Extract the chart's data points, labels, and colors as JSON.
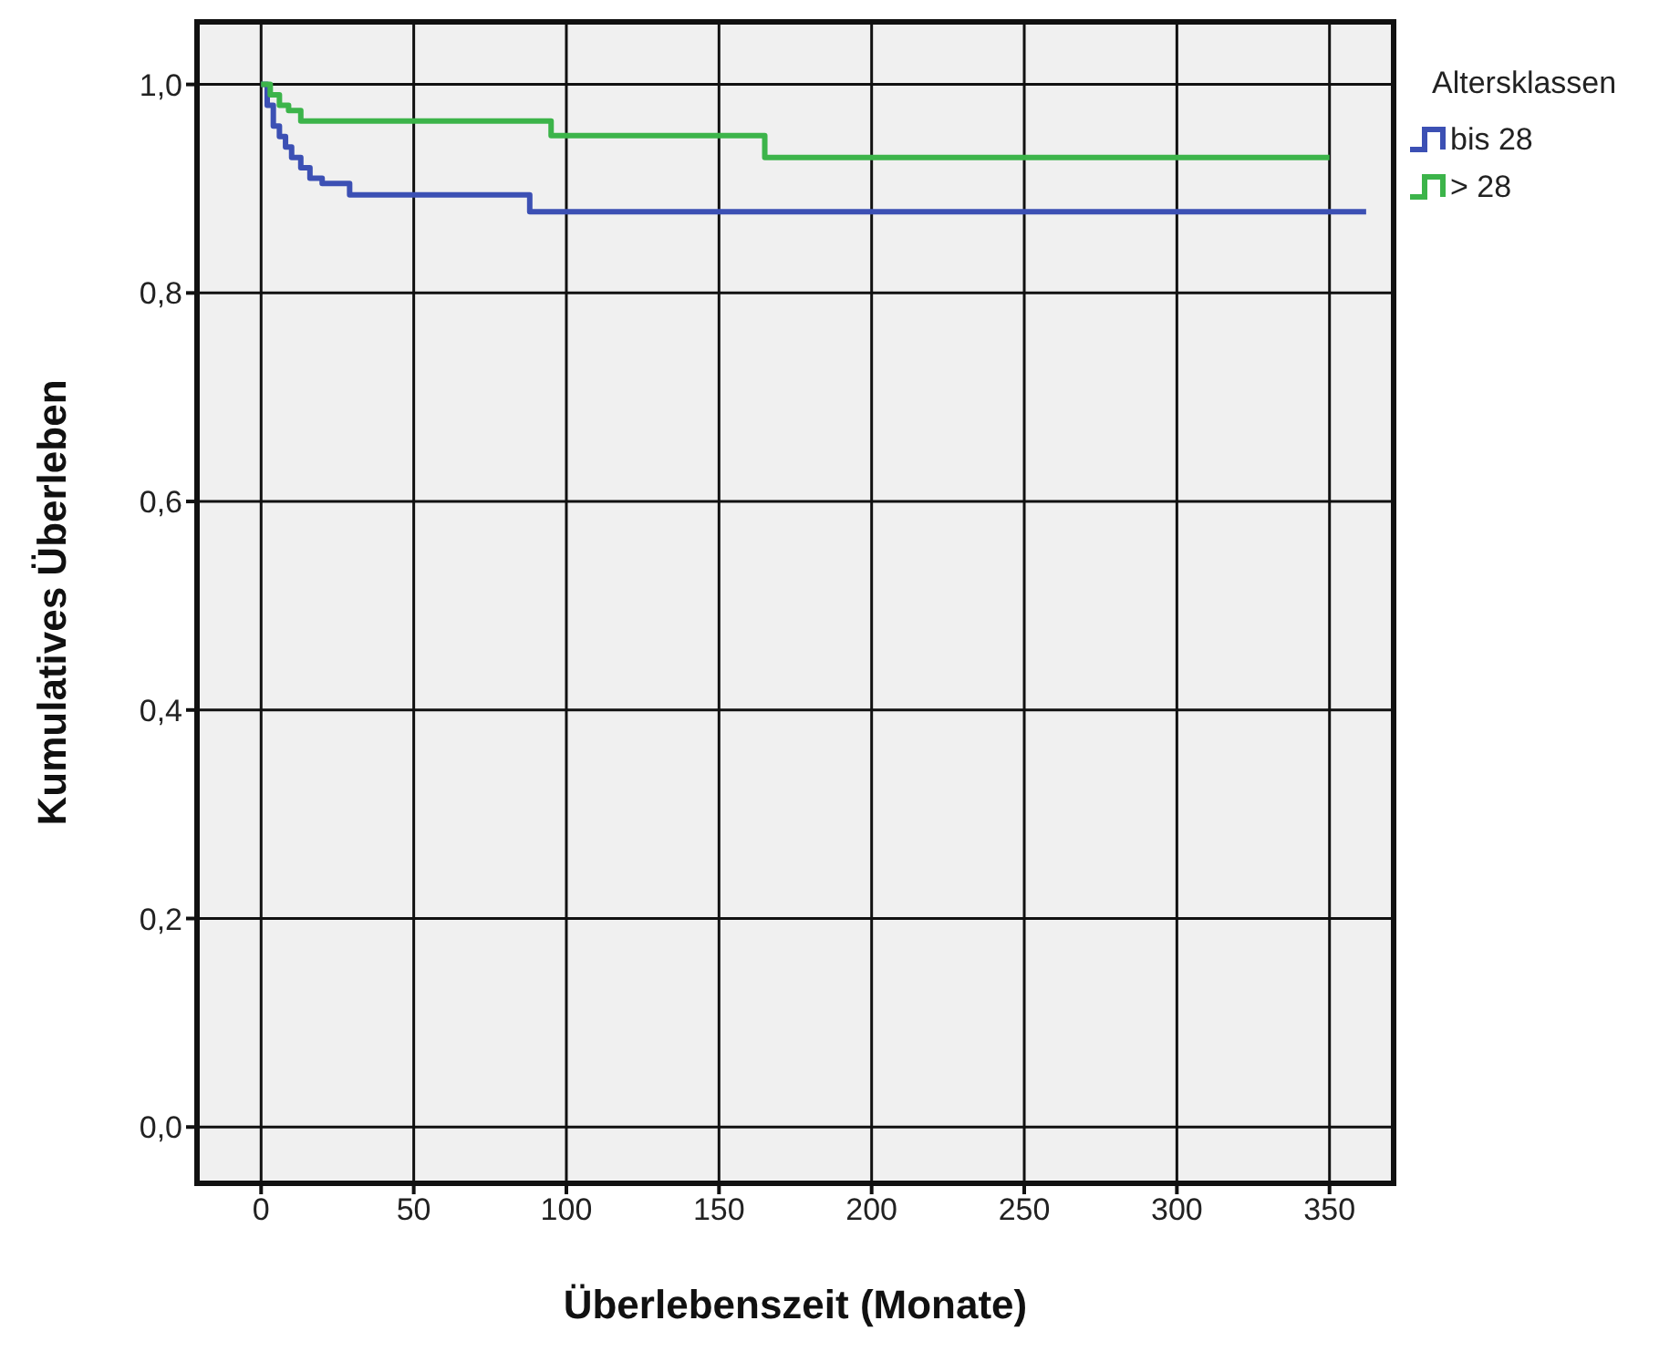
{
  "chart_data": {
    "type": "step",
    "xlabel": "Überlebenszeit (Monate)",
    "ylabel": "Kumulatives Überleben",
    "legend_title": "Altersklassen",
    "legend": "top right",
    "grid": true,
    "xlim": [
      -21,
      371
    ],
    "xticks": [
      0,
      50,
      100,
      150,
      200,
      250,
      300,
      350
    ],
    "ylim": [
      -0.054,
      1.06
    ],
    "yticks": [
      {
        "value": 0,
        "label": "0,0"
      },
      {
        "value": 0.2,
        "label": "0,2"
      },
      {
        "value": 0.4,
        "label": "0,4"
      },
      {
        "value": 0.6,
        "label": "0,6"
      },
      {
        "value": 0.8,
        "label": "0,8"
      },
      {
        "value": 1,
        "label": "1,0"
      }
    ],
    "series": [
      {
        "name": "bis 28",
        "color": "#3c50b4",
        "x": [
          0,
          2,
          4,
          6,
          8,
          10,
          13,
          16,
          20,
          29,
          88,
          362
        ],
        "values": [
          1.0,
          0.98,
          0.96,
          0.95,
          0.94,
          0.93,
          0.92,
          0.91,
          0.905,
          0.894,
          0.878,
          0.878
        ]
      },
      {
        "name": "> 28",
        "color": "#3cb44a",
        "x": [
          0,
          3,
          6,
          9,
          13,
          95,
          165,
          350
        ],
        "values": [
          1.0,
          0.99,
          0.98,
          0.975,
          0.965,
          0.951,
          0.93,
          0.93
        ]
      }
    ]
  }
}
